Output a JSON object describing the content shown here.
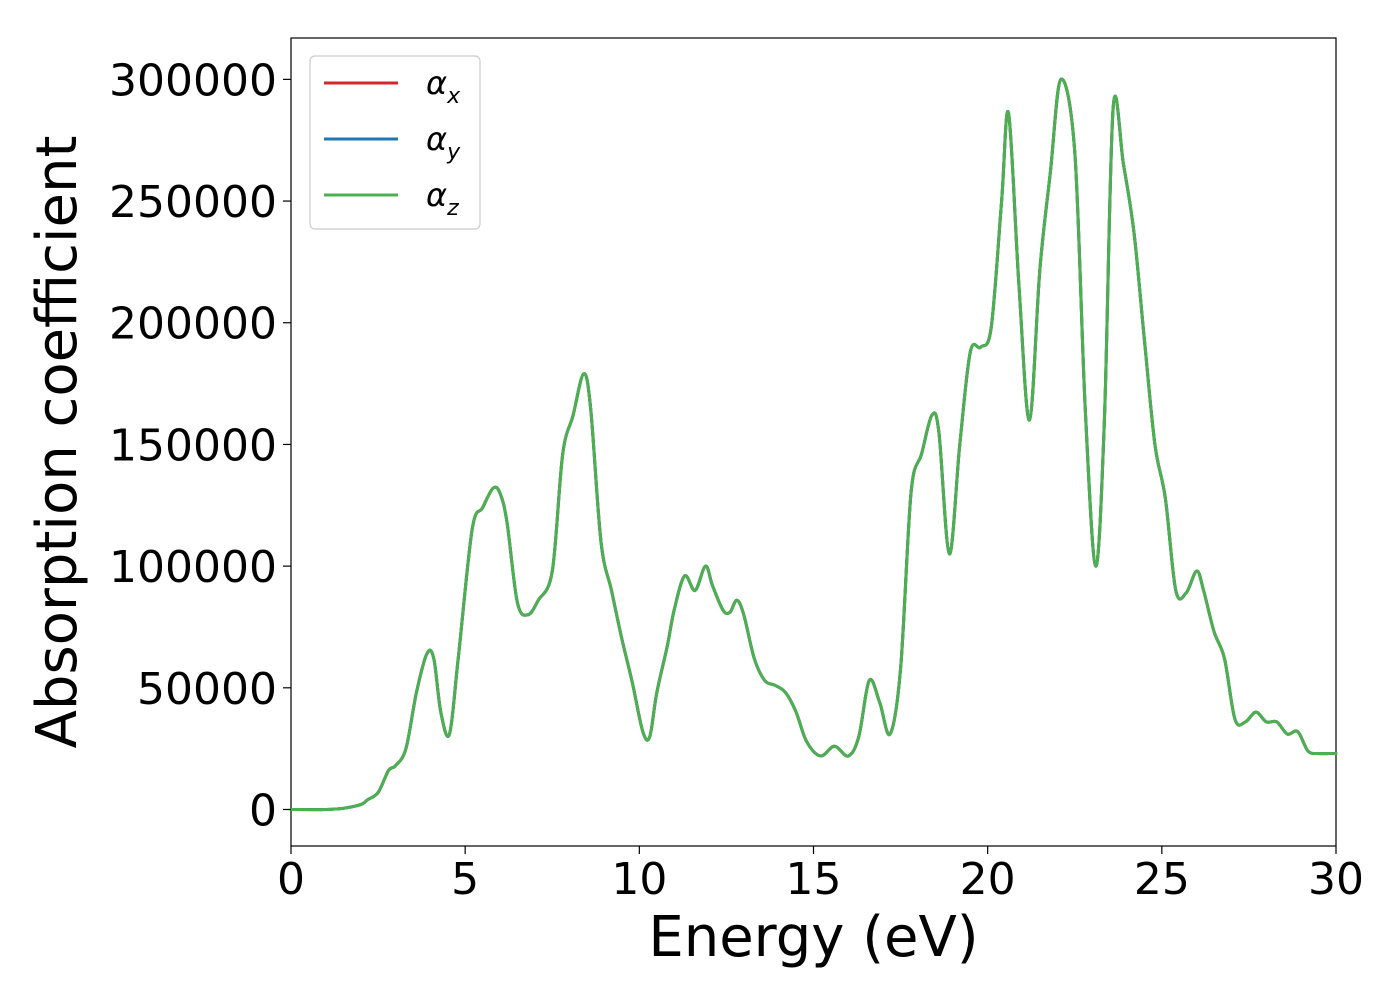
{
  "chart_data": {
    "type": "line",
    "title": "",
    "xlabel": "Energy (eV)",
    "ylabel": "Absorption coefficient",
    "xlim": [
      0,
      30
    ],
    "ylim": [
      -15000,
      317000
    ],
    "xticks": [
      0,
      5,
      10,
      15,
      20,
      25,
      30
    ],
    "xtick_labels": [
      "0",
      "5",
      "10",
      "15",
      "20",
      "25",
      "30"
    ],
    "yticks": [
      0,
      50000,
      100000,
      150000,
      200000,
      250000,
      300000
    ],
    "ytick_labels": [
      "0",
      "50000",
      "100000",
      "150000",
      "200000",
      "250000",
      "300000"
    ],
    "grid": false,
    "legend_position": "top-left",
    "x": [
      0,
      1,
      1.5,
      2,
      2.2,
      2.5,
      2.8,
      3.0,
      3.3,
      3.6,
      3.9,
      4.1,
      4.3,
      4.55,
      4.8,
      5.2,
      5.5,
      5.8,
      6.0,
      6.2,
      6.5,
      6.8,
      7.1,
      7.5,
      7.8,
      8.1,
      8.4,
      8.6,
      8.9,
      9.2,
      9.5,
      9.8,
      10.1,
      10.3,
      10.5,
      10.8,
      11.0,
      11.3,
      11.6,
      11.9,
      12.1,
      12.4,
      12.6,
      12.8,
      13.0,
      13.3,
      13.6,
      13.9,
      14.2,
      14.5,
      14.8,
      15.2,
      15.6,
      16.0,
      16.3,
      16.6,
      16.9,
      17.2,
      17.5,
      17.8,
      18.1,
      18.4,
      18.6,
      18.9,
      19.2,
      19.5,
      19.8,
      20.1,
      20.4,
      20.6,
      20.9,
      21.2,
      21.5,
      21.8,
      22.1,
      22.5,
      22.8,
      23.1,
      23.35,
      23.6,
      23.9,
      24.2,
      24.5,
      24.8,
      25.1,
      25.4,
      25.7,
      26.0,
      26.2,
      26.5,
      26.8,
      27.1,
      27.4,
      27.7,
      28.0,
      28.3,
      28.6,
      28.9,
      29.2,
      29.5,
      29.8,
      30.0
    ],
    "series": [
      {
        "name": "α_x",
        "color": "#d62728",
        "y": [
          0,
          0,
          500,
          2000,
          4000,
          7000,
          16000,
          18000,
          25000,
          48000,
          64000,
          62000,
          40000,
          31000,
          62000,
          115000,
          124000,
          132000,
          130000,
          118000,
          85000,
          80000,
          86000,
          98000,
          146000,
          162000,
          179000,
          165000,
          110000,
          90000,
          70000,
          52000,
          32000,
          30000,
          48000,
          67000,
          82000,
          96000,
          90000,
          100000,
          92000,
          82000,
          81000,
          86000,
          80000,
          62000,
          53000,
          51000,
          48000,
          40000,
          28000,
          22000,
          26000,
          22000,
          30000,
          53000,
          44000,
          31000,
          58000,
          130000,
          146000,
          162000,
          155000,
          105000,
          150000,
          188000,
          190000,
          198000,
          250000,
          286000,
          215000,
          160000,
          222000,
          262000,
          300000,
          270000,
          165000,
          100000,
          160000,
          288000,
          265000,
          237000,
          193000,
          150000,
          128000,
          90000,
          89000,
          98000,
          90000,
          73000,
          62000,
          37000,
          36000,
          40000,
          36000,
          36000,
          31000,
          32000,
          24000,
          23000,
          23000,
          23000
        ]
      },
      {
        "name": "α_y",
        "color": "#1f77b4",
        "y": [
          0,
          0,
          500,
          2000,
          4000,
          7000,
          16000,
          18000,
          25000,
          48000,
          64000,
          62000,
          40000,
          31000,
          62000,
          115000,
          124000,
          132000,
          130000,
          118000,
          85000,
          80000,
          86000,
          98000,
          146000,
          162000,
          179000,
          165000,
          110000,
          90000,
          70000,
          52000,
          32000,
          30000,
          48000,
          67000,
          82000,
          96000,
          90000,
          100000,
          92000,
          82000,
          81000,
          86000,
          80000,
          62000,
          53000,
          51000,
          48000,
          40000,
          28000,
          22000,
          26000,
          22000,
          30000,
          53000,
          44000,
          31000,
          58000,
          130000,
          146000,
          162000,
          155000,
          105000,
          150000,
          188000,
          190000,
          198000,
          250000,
          286000,
          215000,
          160000,
          222000,
          262000,
          300000,
          270000,
          165000,
          100000,
          160000,
          288000,
          265000,
          237000,
          193000,
          150000,
          128000,
          90000,
          89000,
          98000,
          90000,
          73000,
          62000,
          37000,
          36000,
          40000,
          36000,
          36000,
          31000,
          32000,
          24000,
          23000,
          23000,
          23000
        ]
      },
      {
        "name": "α_z",
        "color": "#4caf50",
        "y": [
          0,
          0,
          500,
          2000,
          4000,
          7000,
          16000,
          18000,
          25000,
          48000,
          64000,
          62000,
          40000,
          31000,
          62000,
          115000,
          124000,
          132000,
          130000,
          118000,
          85000,
          80000,
          86000,
          98000,
          146000,
          162000,
          179000,
          165000,
          110000,
          90000,
          70000,
          52000,
          32000,
          30000,
          48000,
          67000,
          82000,
          96000,
          90000,
          100000,
          92000,
          82000,
          81000,
          86000,
          80000,
          62000,
          53000,
          51000,
          48000,
          40000,
          28000,
          22000,
          26000,
          22000,
          30000,
          53000,
          44000,
          31000,
          58000,
          130000,
          146000,
          162000,
          155000,
          105000,
          150000,
          188000,
          190000,
          198000,
          250000,
          286000,
          215000,
          160000,
          222000,
          262000,
          300000,
          270000,
          165000,
          100000,
          160000,
          288000,
          265000,
          237000,
          193000,
          150000,
          128000,
          90000,
          89000,
          98000,
          90000,
          73000,
          62000,
          37000,
          36000,
          40000,
          36000,
          36000,
          31000,
          32000,
          24000,
          23000,
          23000,
          23000
        ]
      }
    ],
    "legend": [
      {
        "symbol": "α",
        "subscript": "x",
        "color": "#d62728"
      },
      {
        "symbol": "α",
        "subscript": "y",
        "color": "#1f77b4"
      },
      {
        "symbol": "α",
        "subscript": "z",
        "color": "#4caf50"
      }
    ]
  }
}
